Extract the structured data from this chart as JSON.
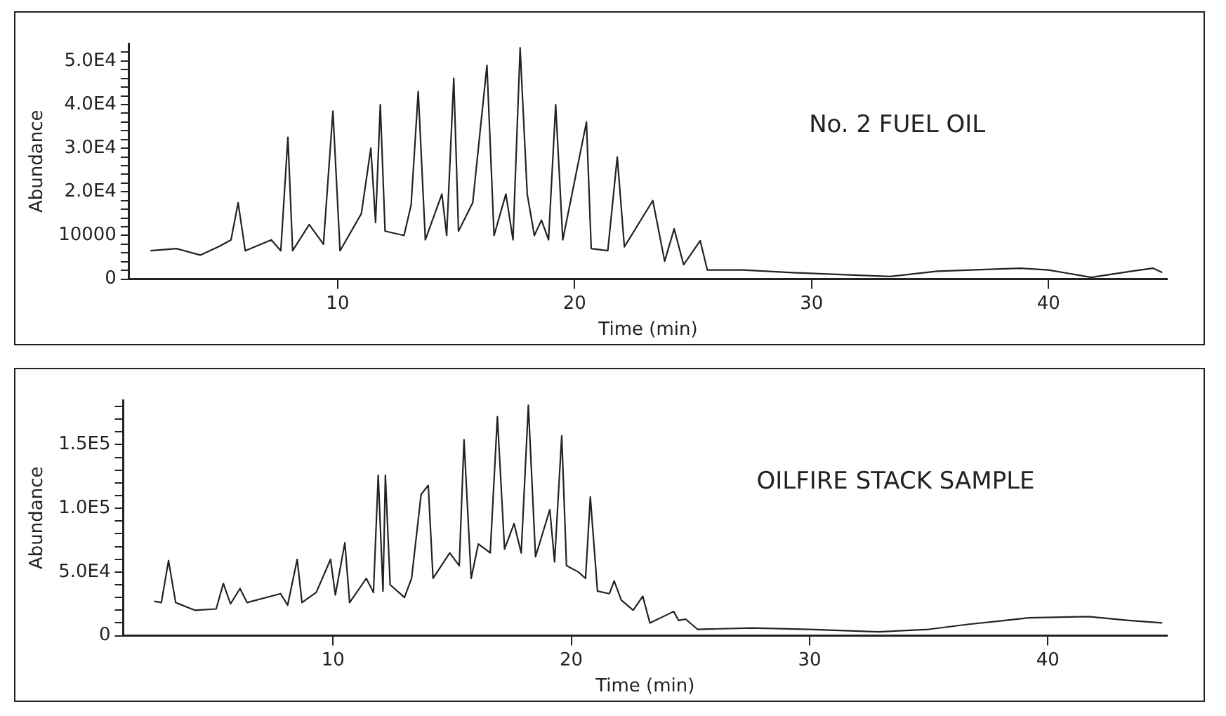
{
  "chart_data": [
    {
      "type": "line",
      "title": "No. 2 FUEL OIL",
      "xlabel": "Time (min)",
      "ylabel": "Abundance",
      "color": "#222222",
      "x": [
        2.1,
        3.2,
        4.2,
        5.0,
        5.5,
        5.8,
        6.1,
        7.2,
        7.6,
        7.9,
        8.1,
        8.8,
        9.4,
        9.8,
        10.1,
        11.0,
        11.4,
        11.6,
        11.8,
        12.0,
        12.8,
        13.1,
        13.4,
        13.7,
        14.4,
        14.6,
        14.9,
        15.1,
        15.7,
        16.3,
        16.6,
        17.1,
        17.4,
        17.7,
        18.0,
        18.3,
        18.6,
        18.9,
        19.2,
        19.5,
        20.5,
        20.7,
        21.4,
        21.8,
        22.1,
        23.3,
        23.8,
        24.2,
        24.6,
        25.3,
        25.6,
        27.1,
        29.2,
        33.3,
        35.3,
        38.8,
        40.0,
        41.8,
        43.5,
        44.4,
        44.8
      ],
      "values": [
        6500,
        7000,
        5500,
        7500,
        9000,
        17500,
        6500,
        9000,
        6500,
        32500,
        6500,
        12500,
        8000,
        38500,
        6500,
        15000,
        30000,
        13000,
        40000,
        11000,
        10000,
        17000,
        43000,
        9000,
        19500,
        10000,
        46000,
        11000,
        17500,
        49000,
        10000,
        19500,
        9000,
        53000,
        19500,
        10000,
        13500,
        9000,
        40000,
        9000,
        36000,
        7000,
        6500,
        28000,
        7400,
        18000,
        4100,
        11500,
        3300,
        8800,
        2100,
        2100,
        1500,
        600,
        1800,
        2500,
        2100,
        400,
        1800,
        2500,
        1500
      ],
      "xlim": [
        1.2,
        45
      ],
      "xticks": [
        10,
        20,
        30,
        40
      ],
      "ylim": [
        0,
        54000
      ],
      "yticks": [
        {
          "value": 0,
          "label": "0"
        },
        {
          "value": 2000,
          "label": null
        },
        {
          "value": 4000,
          "label": null
        },
        {
          "value": 6000,
          "label": null
        },
        {
          "value": 8000,
          "label": null
        },
        10000,
        {
          "value": 12000,
          "label": null
        },
        {
          "value": 14000,
          "label": null
        },
        {
          "value": 16000,
          "label": null
        },
        {
          "value": 18000,
          "label": null
        },
        {
          "value": 20000,
          "label": "2.0E4"
        },
        {
          "value": 22000,
          "label": null
        },
        {
          "value": 24000,
          "label": null
        },
        {
          "value": 26000,
          "label": null
        },
        {
          "value": 28000,
          "label": null
        },
        {
          "value": 30000,
          "label": "3.0E4"
        },
        {
          "value": 32000,
          "label": null
        },
        {
          "value": 34000,
          "label": null
        },
        {
          "value": 36000,
          "label": null
        },
        {
          "value": 38000,
          "label": null
        },
        {
          "value": 40000,
          "label": "4.0E4"
        },
        {
          "value": 42000,
          "label": null
        },
        {
          "value": 44000,
          "label": null
        },
        {
          "value": 46000,
          "label": null
        },
        {
          "value": 48000,
          "label": null
        },
        {
          "value": 50000,
          "label": "5.0E4"
        },
        {
          "value": 52000,
          "label": null
        }
      ]
    },
    {
      "type": "line",
      "title": "OILFIRE STACK SAMPLE",
      "xlabel": "Time (min)",
      "ylabel": "Abundance",
      "color": "#222222",
      "x": [
        2.5,
        2.8,
        3.1,
        3.4,
        4.2,
        5.1,
        5.4,
        5.7,
        6.1,
        6.4,
        7.8,
        8.1,
        8.5,
        8.7,
        9.3,
        9.9,
        10.1,
        10.5,
        10.7,
        11.4,
        11.7,
        11.9,
        12.1,
        12.2,
        12.4,
        13.0,
        13.3,
        13.7,
        14.0,
        14.2,
        14.9,
        15.3,
        15.5,
        15.8,
        16.1,
        16.6,
        16.9,
        17.2,
        17.6,
        17.9,
        18.2,
        18.5,
        19.1,
        19.3,
        19.6,
        19.8,
        20.3,
        20.6,
        20.8,
        21.1,
        21.6,
        21.8,
        22.1,
        22.6,
        23.0,
        23.3,
        24.3,
        24.5,
        24.8,
        25.3,
        27.6,
        30.0,
        32.9,
        35.0,
        36.7,
        38.2,
        39.2,
        41.7,
        43.4,
        44.8
      ],
      "values": [
        27000,
        26000,
        59000,
        26000,
        20000,
        21000,
        41000,
        25000,
        37000,
        26000,
        33000,
        24000,
        60000,
        26000,
        34000,
        60000,
        32000,
        73000,
        26000,
        45000,
        34000,
        126000,
        35000,
        126000,
        40000,
        30000,
        45000,
        111000,
        118000,
        45000,
        65000,
        55000,
        154000,
        45000,
        72000,
        65000,
        172000,
        68000,
        88000,
        65000,
        181000,
        62000,
        99000,
        58000,
        157000,
        55000,
        50000,
        45000,
        109000,
        35000,
        33000,
        43000,
        28000,
        20000,
        31000,
        10000,
        19000,
        12000,
        13000,
        5000,
        6000,
        5000,
        3000,
        5000,
        9000,
        12000,
        14000,
        15000,
        12000,
        10000
      ],
      "xlim": [
        1.2,
        45
      ],
      "xticks": [
        10,
        20,
        30,
        40
      ],
      "ylim": [
        0,
        185000
      ],
      "yticks": [
        {
          "value": 0,
          "label": "0"
        },
        {
          "value": 10000,
          "label": null
        },
        {
          "value": 20000,
          "label": null
        },
        {
          "value": 30000,
          "label": null
        },
        {
          "value": 40000,
          "label": null
        },
        {
          "value": 50000,
          "label": "5.0E4"
        },
        {
          "value": 60000,
          "label": null
        },
        {
          "value": 70000,
          "label": null
        },
        {
          "value": 80000,
          "label": null
        },
        {
          "value": 90000,
          "label": null
        },
        {
          "value": 100000,
          "label": "1.0E5"
        },
        {
          "value": 110000,
          "label": null
        },
        {
          "value": 120000,
          "label": null
        },
        {
          "value": 130000,
          "label": null
        },
        {
          "value": 140000,
          "label": null
        },
        {
          "value": 150000,
          "label": "1.5E5"
        },
        {
          "value": 160000,
          "label": null
        },
        {
          "value": 170000,
          "label": null
        },
        {
          "value": 180000,
          "label": null
        }
      ]
    }
  ]
}
